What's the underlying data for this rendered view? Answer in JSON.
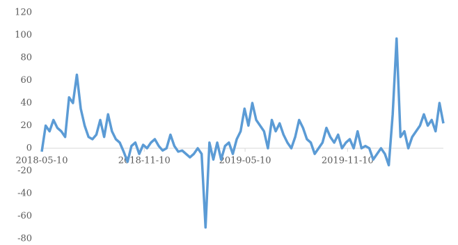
{
  "chart_data": {
    "type": "line",
    "x": [
      "2018-05-10",
      "2018-05-17",
      "2018-05-24",
      "2018-05-31",
      "2018-06-07",
      "2018-06-14",
      "2018-06-21",
      "2018-06-28",
      "2018-07-05",
      "2018-07-12",
      "2018-07-19",
      "2018-07-26",
      "2018-08-02",
      "2018-08-09",
      "2018-08-16",
      "2018-08-23",
      "2018-08-30",
      "2018-09-06",
      "2018-09-13",
      "2018-09-20",
      "2018-09-27",
      "2018-10-04",
      "2018-10-11",
      "2018-10-18",
      "2018-10-25",
      "2018-11-01",
      "2018-11-08",
      "2018-11-15",
      "2018-11-22",
      "2018-11-29",
      "2018-12-06",
      "2018-12-13",
      "2018-12-20",
      "2018-12-27",
      "2019-01-03",
      "2019-01-10",
      "2019-01-17",
      "2019-01-24",
      "2019-01-31",
      "2019-02-07",
      "2019-02-14",
      "2019-02-21",
      "2019-02-28",
      "2019-03-07",
      "2019-03-14",
      "2019-03-21",
      "2019-03-28",
      "2019-04-04",
      "2019-04-11",
      "2019-04-18",
      "2019-04-25",
      "2019-05-02",
      "2019-05-09",
      "2019-05-16",
      "2019-05-23",
      "2019-05-30",
      "2019-06-06",
      "2019-06-13",
      "2019-06-20",
      "2019-06-27",
      "2019-07-04",
      "2019-07-11",
      "2019-07-18",
      "2019-07-25",
      "2019-08-01",
      "2019-08-08",
      "2019-08-15",
      "2019-08-22",
      "2019-08-29",
      "2019-09-05",
      "2019-09-12",
      "2019-09-19",
      "2019-09-26",
      "2019-10-03",
      "2019-10-10",
      "2019-10-17",
      "2019-10-24",
      "2019-10-31",
      "2019-11-07",
      "2019-11-14",
      "2019-11-21",
      "2019-11-28",
      "2019-12-05",
      "2019-12-12",
      "2019-12-19",
      "2019-12-26",
      "2020-01-02",
      "2020-01-09",
      "2020-01-16",
      "2020-01-23",
      "2020-01-30",
      "2020-02-06",
      "2020-02-13",
      "2020-02-20",
      "2020-02-27",
      "2020-03-05",
      "2020-03-12",
      "2020-03-19",
      "2020-03-26",
      "2020-04-02",
      "2020-04-09",
      "2020-04-16",
      "2020-04-23",
      "2020-04-30"
    ],
    "series": [
      {
        "color": "#5b9bd5",
        "values": [
          -3,
          20,
          15,
          25,
          18,
          15,
          10,
          45,
          40,
          65,
          35,
          20,
          10,
          8,
          12,
          25,
          10,
          30,
          15,
          8,
          5,
          -3,
          -12,
          2,
          5,
          -5,
          3,
          0,
          5,
          8,
          2,
          -2,
          0,
          12,
          2,
          -3,
          -2,
          -5,
          -8,
          -5,
          0,
          -5,
          -70,
          5,
          -10,
          5,
          -10,
          2,
          5,
          -5,
          8,
          15,
          35,
          20,
          40,
          25,
          20,
          15,
          0,
          25,
          15,
          22,
          12,
          5,
          0,
          10,
          25,
          18,
          8,
          5,
          -5,
          0,
          5,
          18,
          10,
          5,
          12,
          0,
          5,
          8,
          0,
          15,
          0,
          2,
          0,
          -10,
          -5,
          0,
          -5,
          -15,
          30,
          97,
          10,
          15,
          0,
          10,
          15,
          20,
          30,
          20,
          25,
          15,
          40,
          22
        ]
      }
    ],
    "xlim": [
      "2018-05-10",
      "2020-04-30"
    ],
    "xticks": [
      "2018-05-10",
      "2018-11-10",
      "2019-05-10",
      "2019-11-10"
    ],
    "ylim": [
      -80,
      120
    ],
    "yticks": [
      -80,
      -60,
      -40,
      -20,
      0,
      20,
      40,
      60,
      80,
      100,
      120
    ]
  }
}
